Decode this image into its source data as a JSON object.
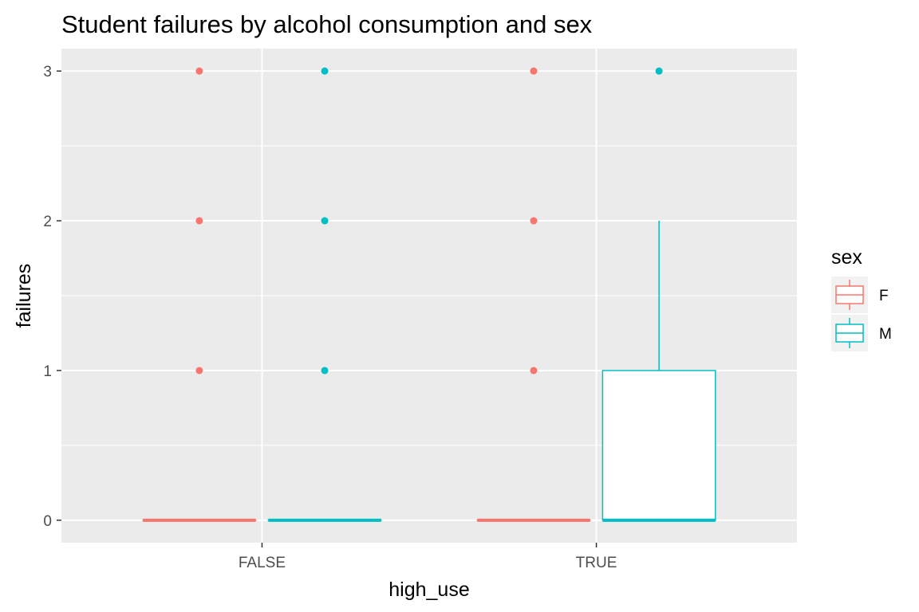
{
  "chart_data": {
    "type": "boxplot",
    "title": "Student failures by alcohol consumption and sex",
    "xlabel": "high_use",
    "ylabel": "failures",
    "categories": [
      "FALSE",
      "TRUE"
    ],
    "ylim": [
      -0.15,
      3.15
    ],
    "yticks": [
      0,
      1,
      2,
      3
    ],
    "grid": true,
    "legend": {
      "title": "sex",
      "position": "right"
    },
    "series": [
      {
        "name": "F",
        "color": "#F8766D",
        "boxes": [
          {
            "category": "FALSE",
            "q1": 0,
            "median": 0,
            "q3": 0,
            "whisker_low": 0,
            "whisker_high": 0,
            "outliers": [
              1,
              2,
              3
            ]
          },
          {
            "category": "TRUE",
            "q1": 0,
            "median": 0,
            "q3": 0,
            "whisker_low": 0,
            "whisker_high": 0,
            "outliers": [
              1,
              2,
              3
            ]
          }
        ]
      },
      {
        "name": "M",
        "color": "#00BFC4",
        "boxes": [
          {
            "category": "FALSE",
            "q1": 0,
            "median": 0,
            "q3": 0,
            "whisker_low": 0,
            "whisker_high": 0,
            "outliers": [
              1,
              2,
              3
            ]
          },
          {
            "category": "TRUE",
            "q1": 0,
            "median": 0,
            "q3": 1,
            "whisker_low": 0,
            "whisker_high": 2,
            "outliers": [
              3
            ]
          }
        ]
      }
    ]
  }
}
